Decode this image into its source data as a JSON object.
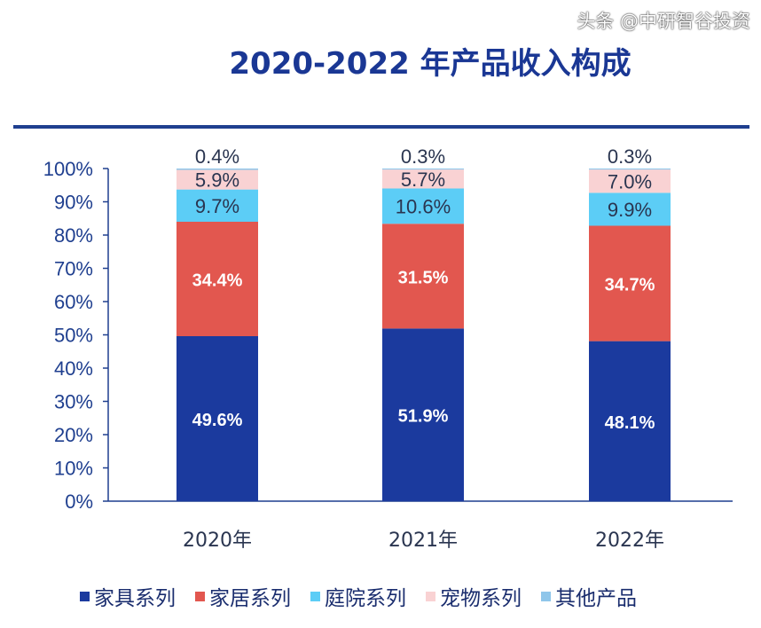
{
  "chart_data": {
    "type": "bar",
    "stacked": true,
    "title": "2020-2022 年产品收入构成",
    "categories": [
      "2020年",
      "2021年",
      "2022年"
    ],
    "ylim": [
      0,
      100
    ],
    "yticks": [
      "0%",
      "10%",
      "20%",
      "30%",
      "40%",
      "50%",
      "60%",
      "70%",
      "80%",
      "90%",
      "100%"
    ],
    "grid": false,
    "legend_placement": "bottom",
    "series": [
      {
        "name": "家具系列",
        "values": [
          49.6,
          51.9,
          48.1
        ],
        "labels": [
          "49.6%",
          "51.9%",
          "48.1%"
        ],
        "color": "#1b3a9e",
        "label_color": "#ffffff"
      },
      {
        "name": "家居系列",
        "values": [
          34.4,
          31.5,
          34.7
        ],
        "labels": [
          "34.4%",
          "31.5%",
          "34.7%"
        ],
        "color": "#e2574f",
        "label_color": "#ffffff"
      },
      {
        "name": "庭院系列",
        "values": [
          9.7,
          10.6,
          9.9
        ],
        "labels": [
          "9.7%",
          "10.6%",
          "9.9%"
        ],
        "color": "#5ccdf6",
        "label_color": "#2a3550"
      },
      {
        "name": "宠物系列",
        "values": [
          5.9,
          5.7,
          7.0
        ],
        "labels": [
          "5.9%",
          "5.7%",
          "7.0%"
        ],
        "color": "#f9d2d3",
        "label_color": "#2a3550"
      },
      {
        "name": "其他产品",
        "values": [
          0.4,
          0.3,
          0.3
        ],
        "labels": [
          "0.4%",
          "0.3%",
          "0.3%"
        ],
        "color": "#8fc6ea",
        "label_color": "#2a3550"
      }
    ]
  },
  "watermark": "头条 @中研智谷投资"
}
